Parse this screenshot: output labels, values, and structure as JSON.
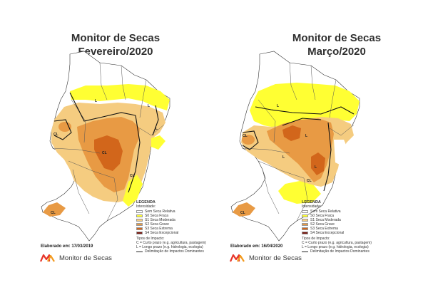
{
  "maps": [
    {
      "title_line1": "Monitor de Secas",
      "title_line2": "Fevereiro/2020",
      "elaborated": "Elaborado em: 17/03/2019"
    },
    {
      "title_line1": "Monitor de Secas",
      "title_line2": "Março/2020",
      "elaborated": "Elaborado em: 16/04/2020"
    }
  ],
  "legend": {
    "title": "LEGENDA",
    "subtitle": "Intensidade:",
    "categories": [
      {
        "label": "Sem Seca Relativa",
        "color": "#ffffff"
      },
      {
        "label": "S0 Seca Fraca",
        "color": "#ffff33"
      },
      {
        "label": "S1 Seca Moderada",
        "color": "#f5cc80"
      },
      {
        "label": "S2 Seca Grave",
        "color": "#e89a44"
      },
      {
        "label": "S3 Seca Extrema",
        "color": "#d2661b"
      },
      {
        "label": "S4 Seca Excepcional",
        "color": "#7a1b12"
      }
    ],
    "impact_title": "Tipos de Impacto:",
    "impact_short": "C = Curto prazo (e.g. agricultura, pastagem)",
    "impact_long": "L = Longo prazo (e.g. hidrologia, ecologia)",
    "impact_line": "Delimitação de Impactos Dominantes"
  },
  "labels": {
    "L": "L",
    "CL": "CL"
  },
  "logo_text": "Monitor de Secas",
  "colors": {
    "title": "#2f2f2f",
    "logo_red": "#e63329",
    "logo_orange": "#f29a1f"
  }
}
